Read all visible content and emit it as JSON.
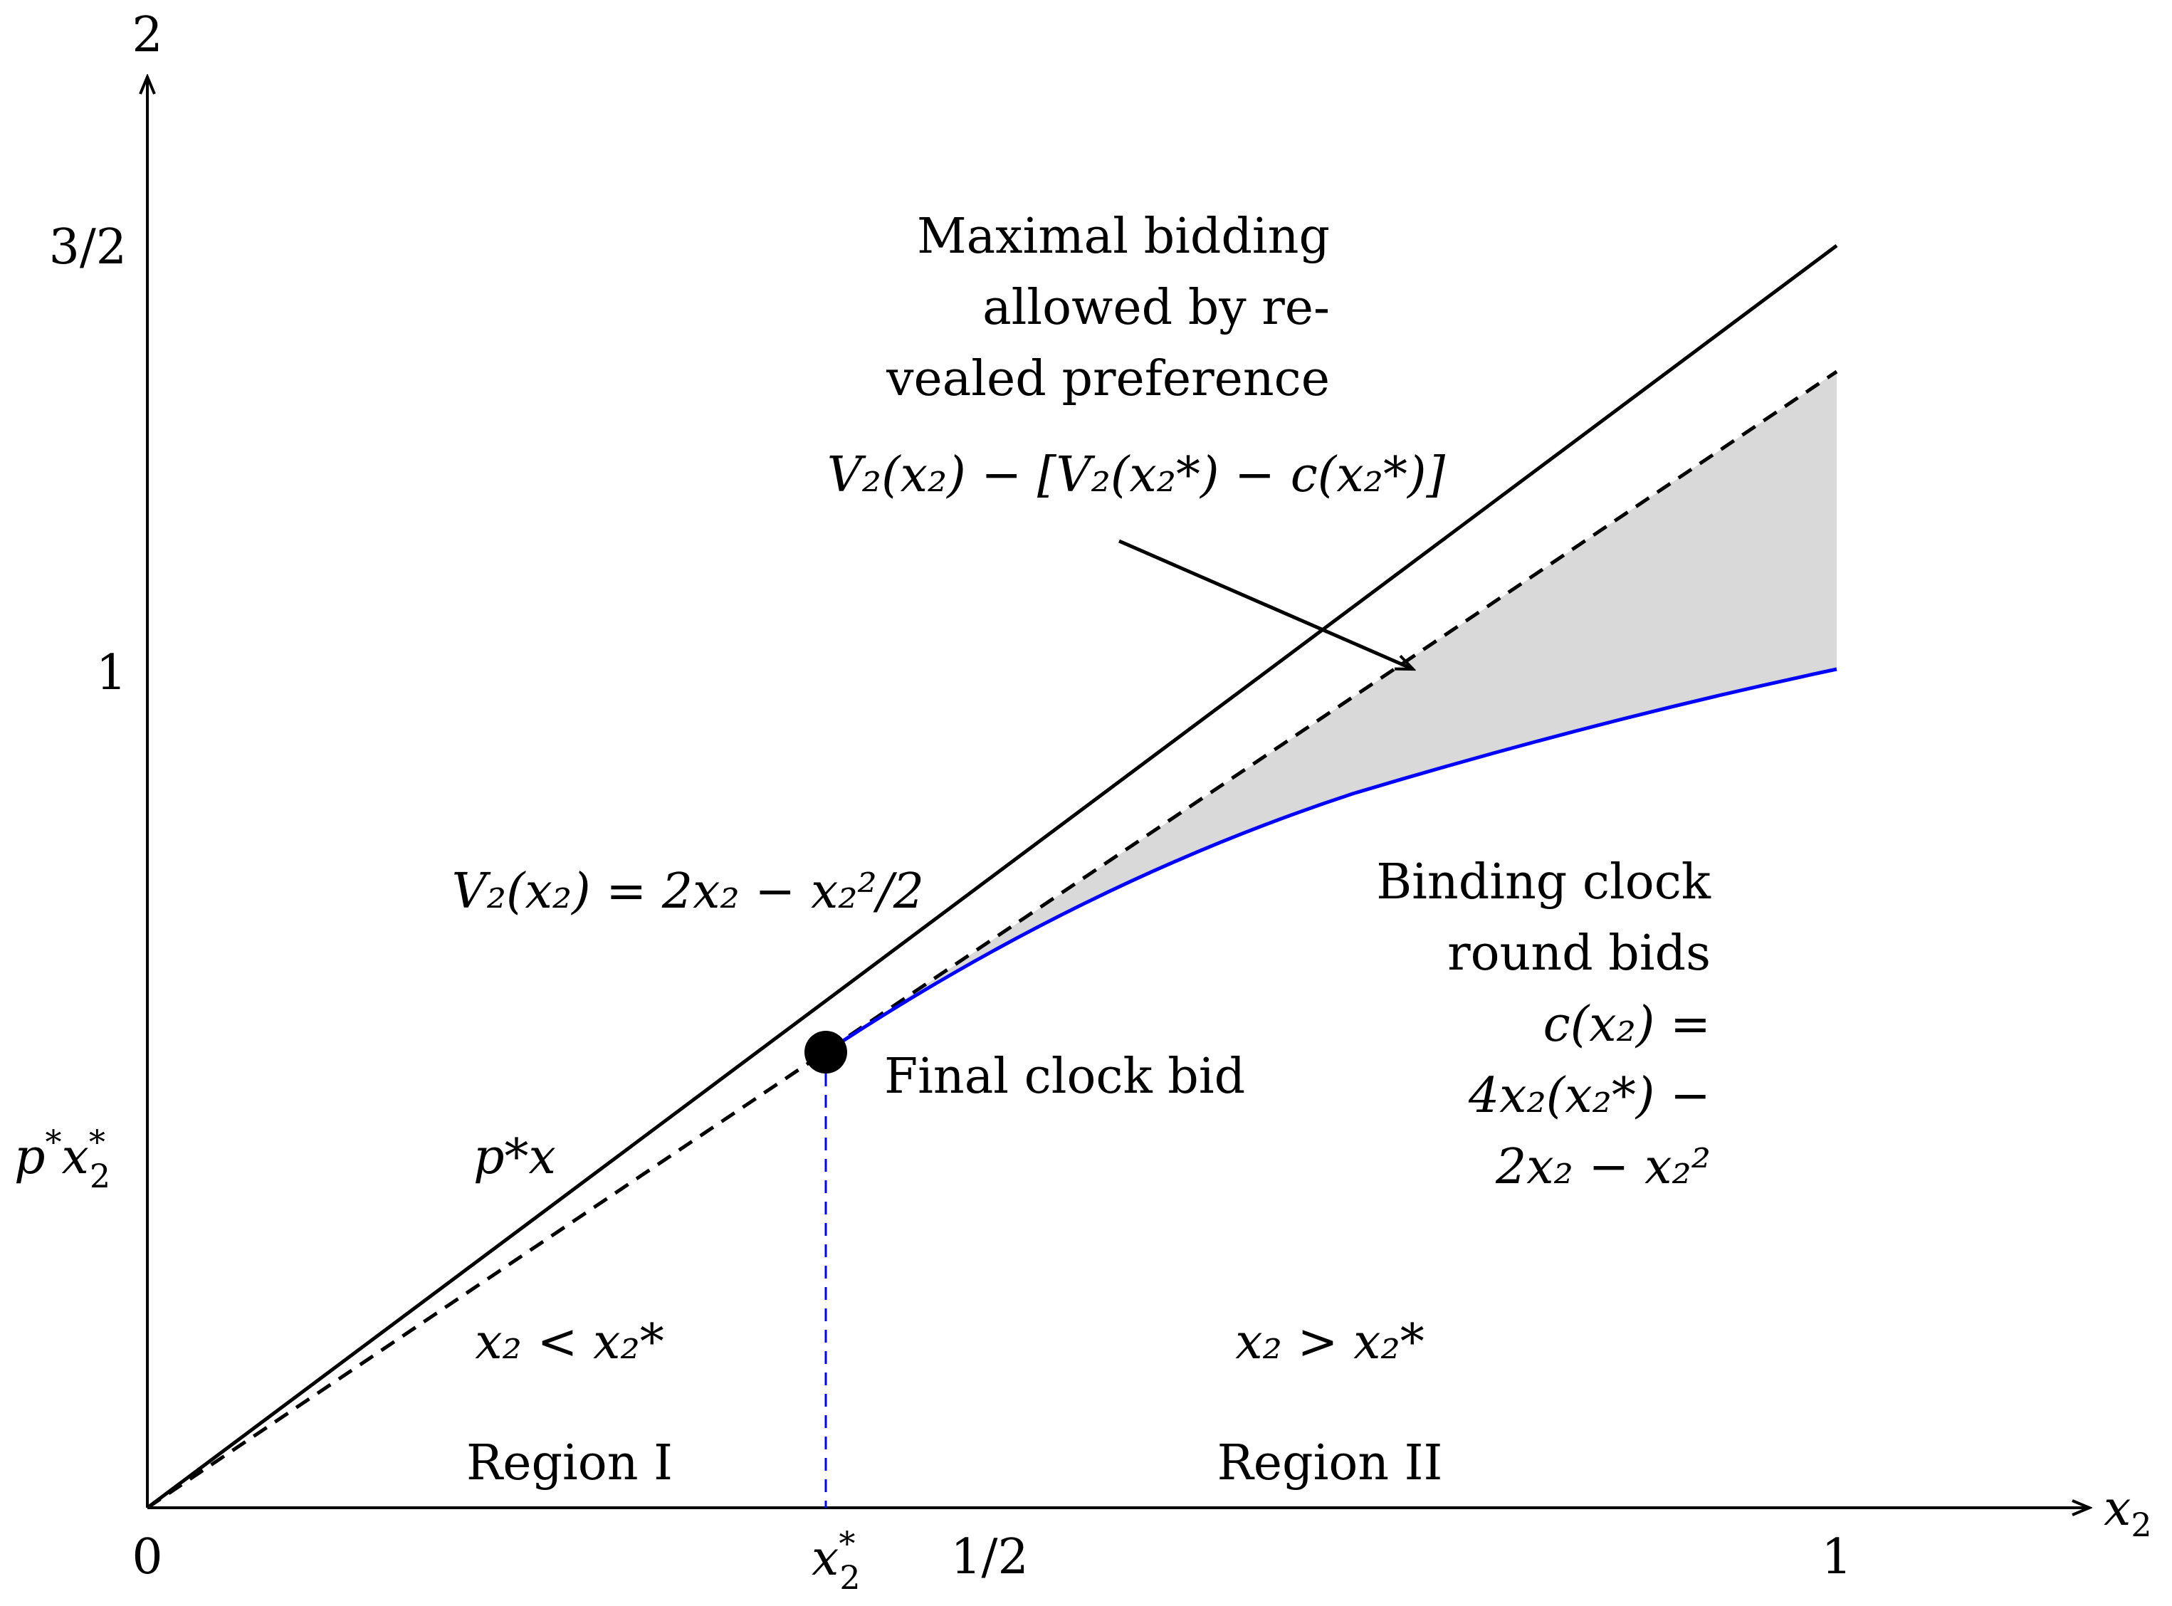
{
  "axes": {
    "x_label": "x",
    "x_label_sub": "2",
    "y_top_label": "2",
    "x_ticks": [
      {
        "text": "0"
      },
      {
        "text": "x",
        "sub": "2",
        "sup": "*"
      },
      {
        "text": "1/2"
      },
      {
        "text": "1"
      }
    ],
    "y_ticks": [
      {
        "text": "3/2"
      },
      {
        "text": "1"
      },
      {
        "text": "p",
        "sup": "*",
        "text2": "x",
        "sub": "2",
        "sup2": "*"
      }
    ]
  },
  "labels": {
    "maximal_bidding": [
      "Maximal bidding",
      "allowed by re-",
      "vealed preference"
    ],
    "maximal_formula": "V₂(x₂) − [V₂(x₂*) − c(x₂*)]",
    "v2_formula": "V₂(x₂) = 2x₂ − x₂²/2",
    "px_line": "p*x",
    "final_clock_bid": "Final clock bid",
    "binding": [
      "Binding clock",
      "round bids",
      "c(x₂)  =",
      "4x₂(x₂*) −",
      "2x₂ − x₂²"
    ],
    "region_1_cond": "x₂ < x₂*",
    "region_2_cond": "x₂ > x₂*",
    "region_1": "Region I",
    "region_2": "Region II"
  },
  "colors": {
    "axis": "#000000",
    "curve": "#0000ff",
    "shade": "#d9d9d9",
    "dashed_vertical": "#0000ff"
  }
}
